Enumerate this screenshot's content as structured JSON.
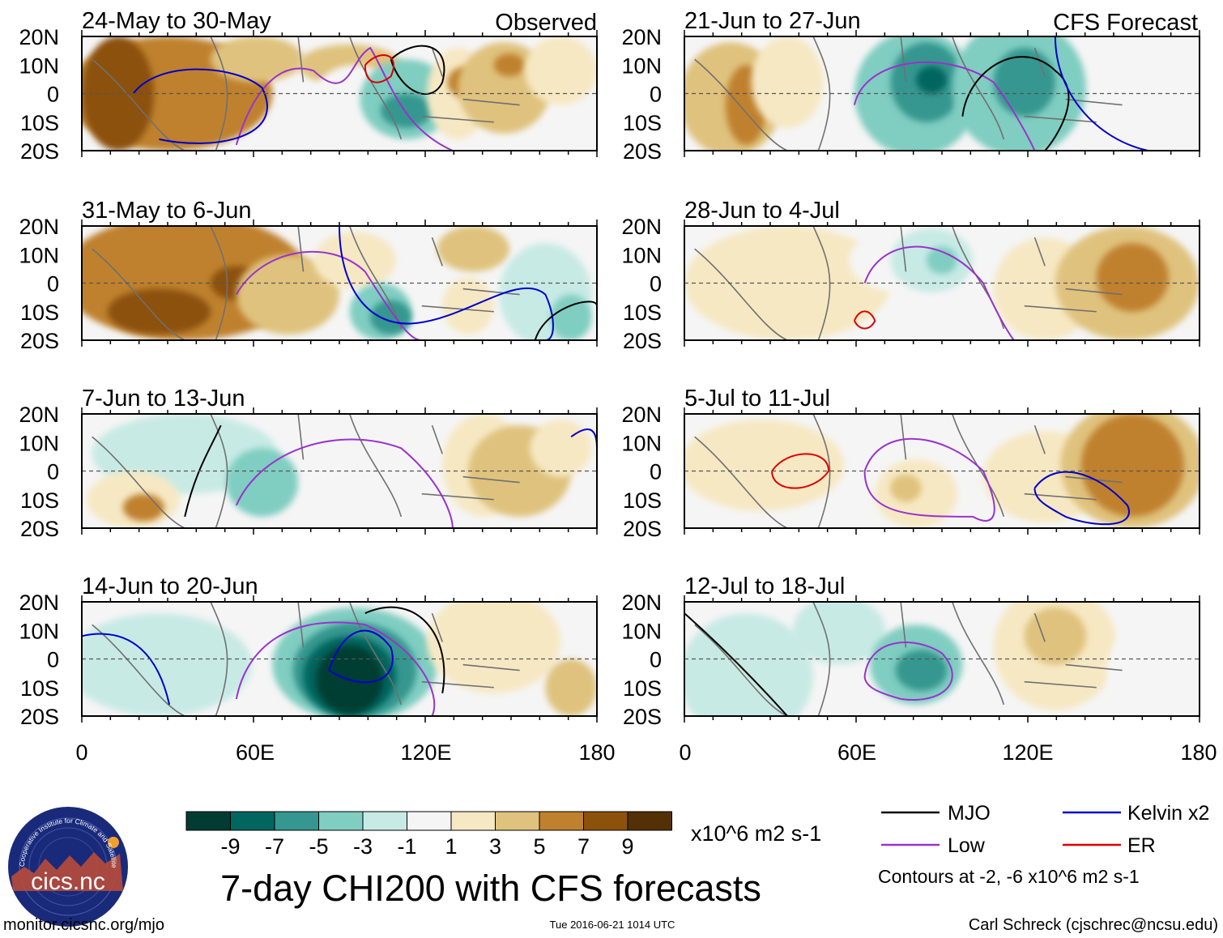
{
  "figure": {
    "title": "7-day CHI200 with CFS forecasts",
    "units": "x10^6 m2 s-1",
    "contour_note": "Contours at -2, -6 x10^6 m2 s-1",
    "footer_left": "monitor.cicsnc.org/mjo",
    "footer_center": "Tue 2016-06-21 1014 UTC",
    "footer_right": "Carl Schreck (cjschrec@ncsu.edu)",
    "logo_text": "cics.nc",
    "logo_ring_text": "Cooperative Institute for Climate and Satellites",
    "left_column_label": "Observed",
    "right_column_label": "CFS Forecast"
  },
  "axes": {
    "lat_labels": [
      "20N",
      "10N",
      "0",
      "10S",
      "20S"
    ],
    "lon_labels": [
      "0",
      "60E",
      "120E",
      "180"
    ]
  },
  "panels": [
    {
      "id": "obs-1",
      "title": "24-May to 30-May",
      "column": "observed"
    },
    {
      "id": "obs-2",
      "title": "31-May to 6-Jun",
      "column": "observed"
    },
    {
      "id": "obs-3",
      "title": "7-Jun to 13-Jun",
      "column": "observed"
    },
    {
      "id": "obs-4",
      "title": "14-Jun to 20-Jun",
      "column": "observed"
    },
    {
      "id": "fc-1",
      "title": "21-Jun to 27-Jun",
      "column": "forecast"
    },
    {
      "id": "fc-2",
      "title": "28-Jun to 4-Jul",
      "column": "forecast"
    },
    {
      "id": "fc-3",
      "title": "5-Jul to 11-Jul",
      "column": "forecast"
    },
    {
      "id": "fc-4",
      "title": "12-Jul to 18-Jul",
      "column": "forecast"
    }
  ],
  "colorbar": {
    "colors": [
      "#003c32",
      "#01665e",
      "#35978f",
      "#80cdc1",
      "#c7eae5",
      "#f5f5f5",
      "#f6e8c3",
      "#dfc27d",
      "#bf812d",
      "#8c510a",
      "#543005"
    ],
    "labels": [
      "-9",
      "-7",
      "-5",
      "-3",
      "-1",
      "1",
      "3",
      "5",
      "7",
      "9"
    ]
  },
  "legend": [
    {
      "label": "MJO",
      "color": "#000000"
    },
    {
      "label": "Kelvin x2",
      "color": "#0000cc"
    },
    {
      "label": "Low",
      "color": "#9a32cd"
    },
    {
      "label": "ER",
      "color": "#dd0000"
    }
  ]
}
